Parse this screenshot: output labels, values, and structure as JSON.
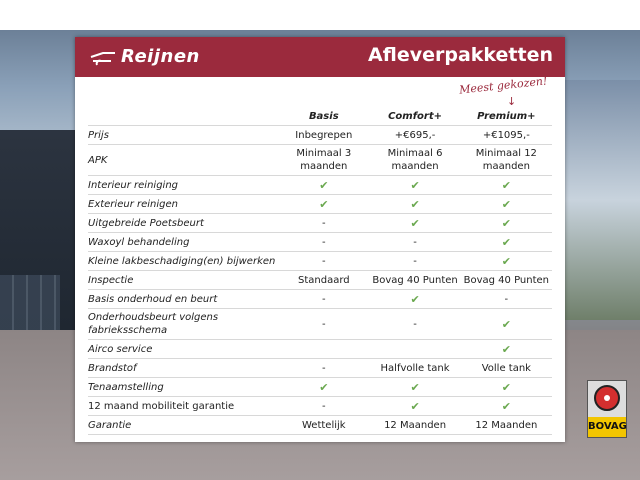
{
  "header": {
    "logo_text": "Reijnen",
    "title": "Afleverpakketten",
    "tagline": "Meest gekozen!"
  },
  "colors": {
    "brand": "#9b2a3d",
    "check": "#6aa84f"
  },
  "table": {
    "columns": [
      "",
      "Basis",
      "Comfort+",
      "Premium+"
    ],
    "rows": [
      {
        "label": "Prijs",
        "values": [
          "Inbegrepen",
          "+€695,-",
          "+€1095,-"
        ]
      },
      {
        "label": "APK",
        "values": [
          "Minimaal 3 maanden",
          "Minimaal 6 maanden",
          "Minimaal 12 maanden"
        ]
      },
      {
        "label": "Interieur reiniging",
        "values": [
          "✔",
          "✔",
          "✔"
        ]
      },
      {
        "label": "Exterieur reinigen",
        "values": [
          "✔",
          "✔",
          "✔"
        ]
      },
      {
        "label": "Uitgebreide Poetsbeurt",
        "values": [
          "-",
          "✔",
          "✔"
        ]
      },
      {
        "label": "Waxoyl behandeling",
        "values": [
          "-",
          "-",
          "✔"
        ]
      },
      {
        "label": "Kleine lakbeschadiging(en) bijwerken",
        "values": [
          "-",
          "-",
          "✔"
        ]
      },
      {
        "label": "Inspectie",
        "values": [
          "Standaard",
          "Bovag 40 Punten",
          "Bovag 40 Punten"
        ]
      },
      {
        "label": "Basis onderhoud en beurt",
        "values": [
          "-",
          "✔",
          "-"
        ]
      },
      {
        "label": "Onderhoudsbeurt volgens fabrieksschema",
        "values": [
          "-",
          "-",
          "✔"
        ]
      },
      {
        "label": "Airco service",
        "values": [
          "",
          "",
          "✔"
        ]
      },
      {
        "label": "Brandstof",
        "values": [
          "-",
          "Halfvolle tank",
          "Volle tank"
        ]
      },
      {
        "label": "Tenaamstelling",
        "values": [
          "✔",
          "✔",
          "✔"
        ]
      },
      {
        "label": "12 maand mobiliteit garantie",
        "values": [
          "-",
          "✔",
          "✔"
        ],
        "plain": true
      },
      {
        "label": "Garantie",
        "values": [
          "Wettelijk",
          "12 Maanden",
          "12 Maanden"
        ]
      }
    ]
  },
  "badge": {
    "text": "BOVAG"
  }
}
